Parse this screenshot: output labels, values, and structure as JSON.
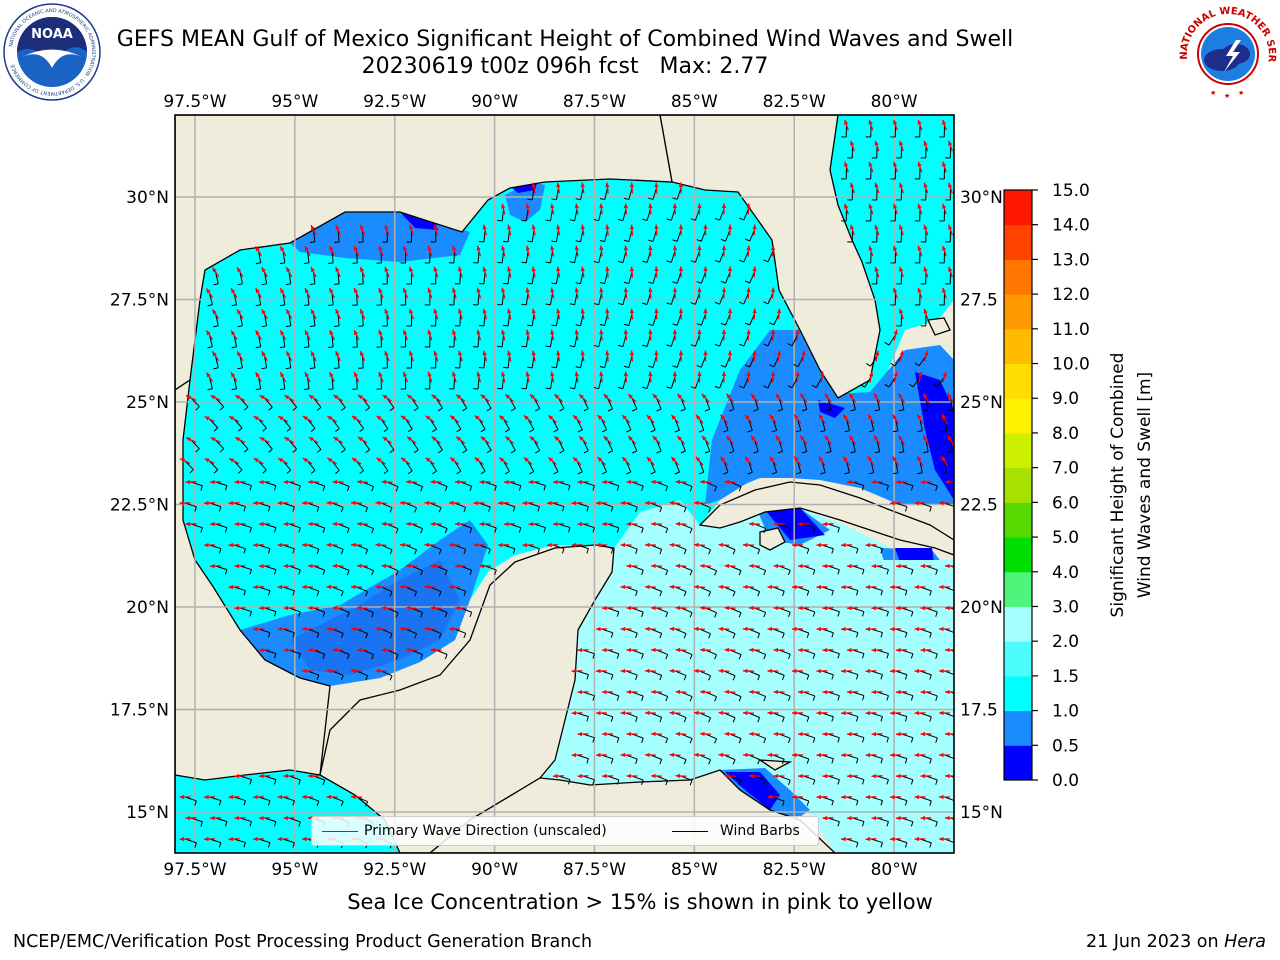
{
  "title": {
    "line1": "GEFS MEAN Gulf of Mexico Significant Height of Combined Wind Waves and Swell",
    "line2": "20230619 t00z 096h fcst   Max: 2.77"
  },
  "map": {
    "lon_ticks": [
      "97.5°W",
      "95°W",
      "92.5°W",
      "90°W",
      "87.5°W",
      "85°W",
      "82.5°W",
      "80°W"
    ],
    "lat_ticks_left": [
      "30°N",
      "27.5°N",
      "25°N",
      "22.5°N",
      "20°N",
      "17.5°N",
      "15°N"
    ],
    "lat_ticks_right": [
      "30°N",
      "27.5",
      "25°N",
      "22.5",
      "20°N",
      "17.5",
      "15°N"
    ],
    "lon_range": [
      -98,
      -78.5
    ],
    "lat_range": [
      14,
      32
    ],
    "colors": {
      "land": "#efecdc",
      "coast": "#000000",
      "grid": "#b0b0b0",
      "wave_arrow": "#ff0000",
      "wind_barb": "#000000"
    }
  },
  "colorbar": {
    "label_line1": "Significant Height of Combined",
    "label_line2": "Wind Waves and Swell [m]",
    "tick_labels": [
      "0.0",
      "0.5",
      "1.0",
      "1.5",
      "2.0",
      "3.0",
      "4.0",
      "5.0",
      "6.0",
      "7.0",
      "8.0",
      "9.0",
      "10.0",
      "11.0",
      "12.0",
      "13.0",
      "14.0",
      "15.0"
    ],
    "colors": [
      "#0000ff",
      "#1a8cff",
      "#00ffff",
      "#4dfcfc",
      "#a6ffff",
      "#4ff47a",
      "#00e000",
      "#56d900",
      "#a8e000",
      "#ccf000",
      "#fff000",
      "#ffdd00",
      "#ffbb00",
      "#ff9900",
      "#ff7700",
      "#ff4400",
      "#ff1800"
    ]
  },
  "legend": {
    "primary_wave": "Primary Wave Direction (unscaled)",
    "wind_barbs": "Wind Barbs"
  },
  "sea_ice_note": "Sea Ice Concentration > 15% is shown in pink to yellow",
  "footer": {
    "left": "NCEP/EMC/Verification Post Processing Product Generation Branch",
    "right_prefix": "21 Jun 2023 on ",
    "right_host": "Hera"
  },
  "logos": {
    "noaa_text": "NOAA",
    "noaa_ring": "NATIONAL OCEANIC AND ATMOSPHERIC ADMINISTRATION · U.S. DEPARTMENT OF COMMERCE",
    "nws_ring": "NATIONAL WEATHER SERVICE"
  }
}
